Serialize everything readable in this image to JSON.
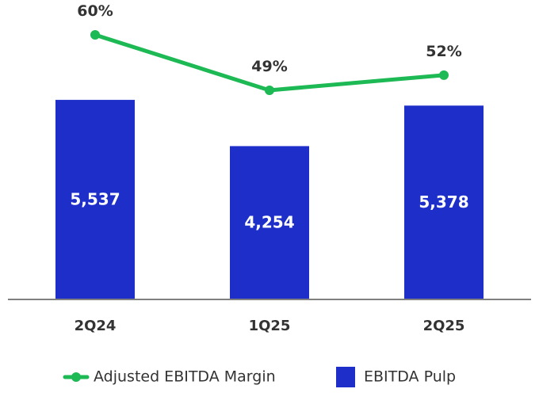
{
  "chart_data": {
    "type": "bar",
    "categories": [
      "2Q24",
      "1Q25",
      "2Q25"
    ],
    "series": [
      {
        "name": "EBITDA Pulp",
        "kind": "bar",
        "color": "#1e2fc9",
        "values": [
          5537,
          4254,
          5378
        ],
        "labels": [
          "5,537",
          "4,254",
          "5,378"
        ]
      },
      {
        "name": "Adjusted EBITDA Margin",
        "kind": "line",
        "color": "#1db954",
        "values": [
          60,
          49,
          52
        ],
        "labels": [
          "60%",
          "49%",
          "52%"
        ]
      }
    ],
    "legend": [
      "Adjusted EBITDA Margin",
      "EBITDA Pulp"
    ],
    "legend_position": "bottom",
    "grid": false,
    "axis_color": "#808080"
  }
}
